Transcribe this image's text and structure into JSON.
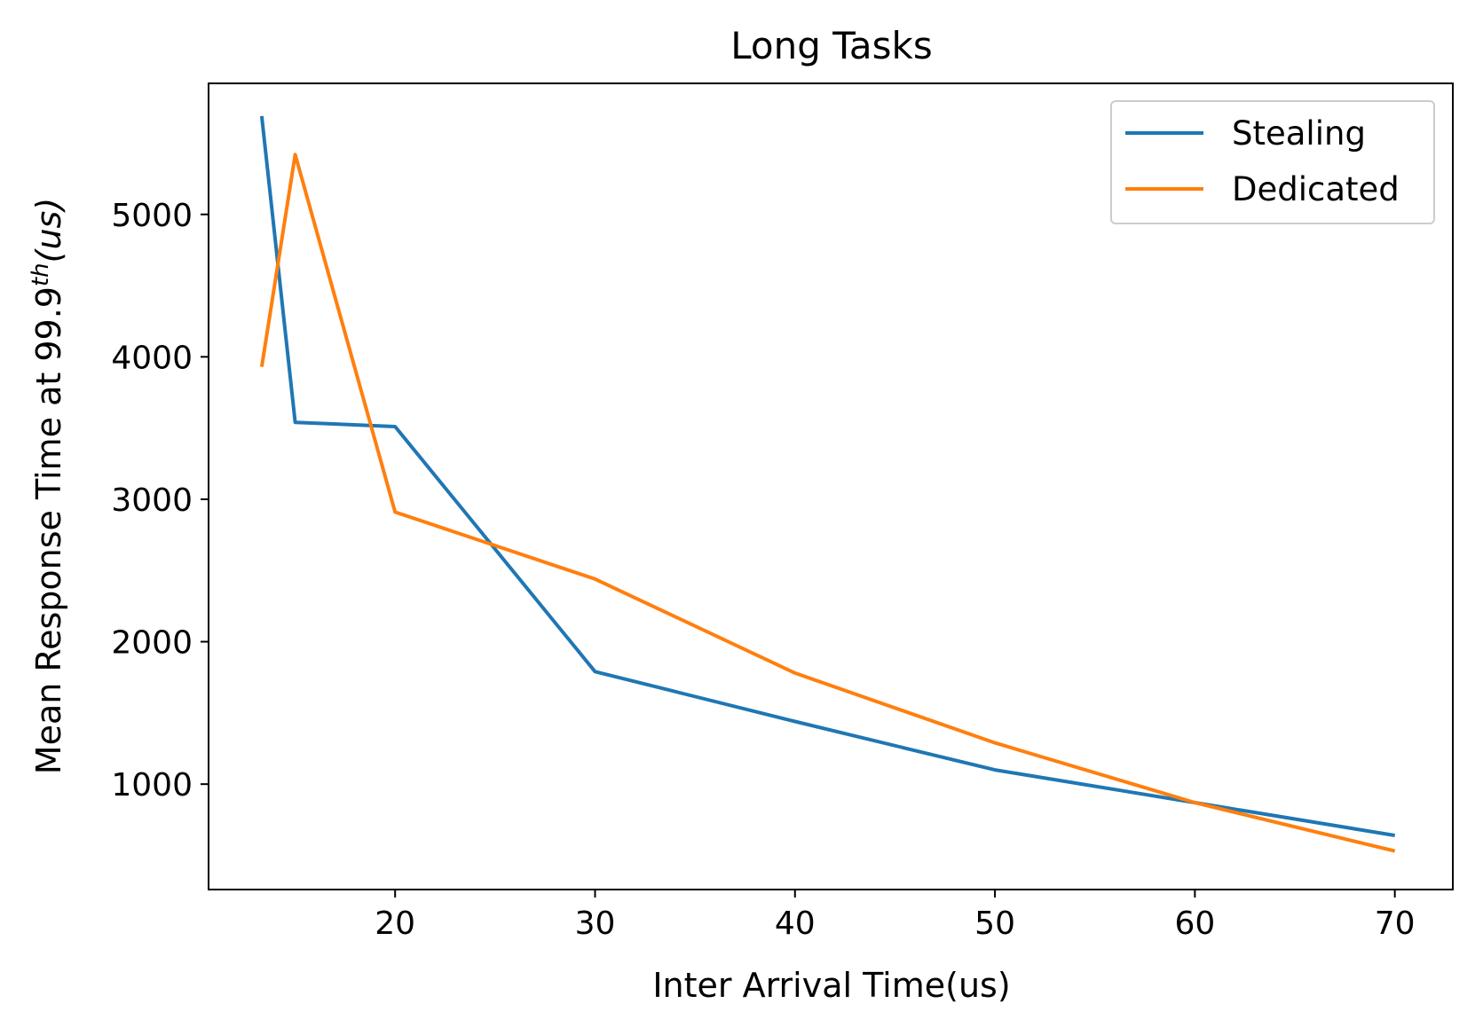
{
  "chart_data": {
    "type": "line",
    "title": "Long Tasks",
    "xlabel": "Inter Arrival Time(us)",
    "ylabel_main": "Mean Response Time at 99.9",
    "ylabel_sup": "th",
    "ylabel_unit": "(us)",
    "xlim": [
      10.67,
      72.9
    ],
    "ylim": [
      260,
      5920
    ],
    "xticks": [
      20,
      30,
      40,
      50,
      60,
      70
    ],
    "yticks": [
      1000,
      2000,
      3000,
      4000,
      5000
    ],
    "grid": false,
    "legend_position": "top-right",
    "series": [
      {
        "name": "Stealing",
        "color": "#1f77b4",
        "x": [
          13.33,
          15,
          20,
          30,
          40,
          50,
          60,
          70
        ],
        "y": [
          5690,
          3540,
          3510,
          1790,
          1440,
          1100,
          870,
          640
        ]
      },
      {
        "name": "Dedicated",
        "color": "#ff7f0e",
        "x": [
          13.33,
          15,
          20,
          30,
          40,
          50,
          60,
          70
        ],
        "y": [
          3930,
          5420,
          2910,
          2440,
          1780,
          1290,
          870,
          530
        ]
      }
    ]
  }
}
